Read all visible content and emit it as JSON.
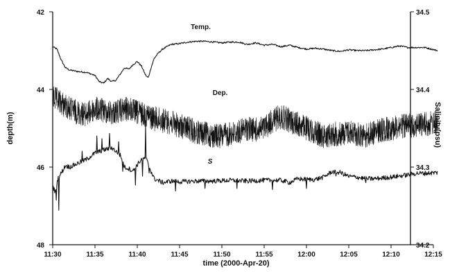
{
  "chart_data": {
    "type": "line",
    "title": "",
    "xlabel": "time (2000-Apr-20)",
    "ylabel_left": "depth(m)",
    "ylabel_right": "Salinity(psu)",
    "x_ticks": [
      "11:30",
      "11:35",
      "11:40",
      "11:45",
      "11:50",
      "11:55",
      "12:00",
      "12:05",
      "12:10",
      "12:15"
    ],
    "xlim_minutes": [
      0,
      45
    ],
    "left_axis": {
      "ticks": [
        "42",
        "44",
        "46",
        "48"
      ],
      "ylim": [
        42,
        48
      ],
      "inverted": true
    },
    "right_axis": {
      "ticks": [
        "34.5",
        "34.4",
        "34.3",
        "34.2"
      ],
      "ylim": [
        34.2,
        34.5
      ]
    },
    "grid": false,
    "x_unit": "minutes after 11:30",
    "series": [
      {
        "name": "Temp.",
        "axis": "right",
        "color": "#111111",
        "noise": 0.001,
        "x": [
          0,
          0.5,
          1,
          1.5,
          2,
          3,
          4,
          5,
          5.5,
          6,
          6.5,
          7,
          7.5,
          8,
          8.5,
          9,
          9.5,
          10,
          10.5,
          11,
          11.3,
          11.6,
          12,
          12.5,
          13,
          14,
          15,
          16,
          17,
          18,
          19,
          20,
          21,
          22,
          23,
          24,
          25,
          26,
          27,
          28,
          29,
          30,
          31,
          32,
          33,
          34,
          35,
          36,
          37,
          38,
          39,
          40,
          41,
          42,
          43,
          44,
          45.5
        ],
        "y": [
          34.455,
          34.452,
          34.438,
          34.428,
          34.425,
          34.423,
          34.422,
          34.418,
          34.41,
          34.408,
          34.414,
          34.41,
          34.412,
          34.42,
          34.428,
          34.426,
          34.432,
          34.436,
          34.43,
          34.418,
          34.415,
          34.427,
          34.44,
          34.447,
          34.452,
          34.458,
          34.459,
          34.461,
          34.462,
          34.462,
          34.461,
          34.46,
          34.461,
          34.461,
          34.458,
          34.46,
          34.457,
          34.458,
          34.455,
          34.457,
          34.454,
          34.452,
          34.453,
          34.452,
          34.45,
          34.449,
          34.451,
          34.45,
          34.45,
          34.451,
          34.452,
          34.454,
          34.456,
          34.454,
          34.454,
          34.454,
          34.45
        ]
      },
      {
        "name": "Dep.",
        "axis": "left",
        "color": "#111111",
        "noise": 0.32,
        "x": [
          0,
          1,
          2,
          3,
          4,
          5,
          6,
          7,
          8,
          9,
          10,
          11,
          12,
          13,
          14,
          15,
          16,
          17,
          18,
          19,
          20,
          21,
          22,
          23,
          24,
          25,
          26,
          27,
          28,
          29,
          30,
          31,
          32,
          33,
          34,
          35,
          36,
          37,
          38,
          39,
          40,
          41,
          42,
          43,
          44,
          45.5
        ],
        "y": [
          44.2,
          44.35,
          44.5,
          44.6,
          44.65,
          44.5,
          44.55,
          44.6,
          44.55,
          44.5,
          44.6,
          44.65,
          44.75,
          44.8,
          44.85,
          44.95,
          45.0,
          45.1,
          45.15,
          45.2,
          45.2,
          45.15,
          45.1,
          45.0,
          45.05,
          45.0,
          44.8,
          44.7,
          44.8,
          44.9,
          45.0,
          45.1,
          45.2,
          45.15,
          45.15,
          45.1,
          45.15,
          45.2,
          45.1,
          45.05,
          45.0,
          44.95,
          44.95,
          44.9,
          44.9,
          44.85
        ]
      },
      {
        "name": "S",
        "axis": "right",
        "color": "#111111",
        "noise": 0.003,
        "spikes": [
          [
            0.4,
            -0.02
          ],
          [
            0.7,
            -0.04
          ],
          [
            3.5,
            0.012
          ],
          [
            5.2,
            0.02
          ],
          [
            5.8,
            0.015
          ],
          [
            6.7,
            0.02
          ],
          [
            7.8,
            0.018
          ],
          [
            8.3,
            -0.012
          ],
          [
            9.8,
            -0.02
          ],
          [
            10.6,
            -0.025
          ],
          [
            11.0,
            0.04
          ],
          [
            11.4,
            -0.008
          ],
          [
            14.5,
            -0.01
          ],
          [
            18.0,
            -0.008
          ],
          [
            21.8,
            -0.01
          ],
          [
            26.0,
            -0.009
          ],
          [
            30.0,
            -0.01
          ],
          [
            33.5,
            -0.008
          ],
          [
            37.0,
            -0.006
          ]
        ],
        "x": [
          0,
          0.3,
          0.6,
          1,
          1.5,
          2,
          3,
          4,
          5,
          6,
          7,
          8,
          8.5,
          9,
          9.5,
          10,
          10.5,
          11,
          11.5,
          12,
          13,
          14,
          15,
          17,
          19,
          21,
          23,
          25,
          27,
          28,
          29,
          30,
          31,
          32,
          33,
          34,
          35,
          36,
          37,
          38,
          40,
          42,
          43,
          44,
          45.5
        ],
        "y": [
          34.275,
          34.268,
          34.285,
          34.292,
          34.302,
          34.3,
          34.305,
          34.31,
          34.318,
          34.322,
          34.325,
          34.315,
          34.3,
          34.298,
          34.295,
          34.303,
          34.31,
          34.312,
          34.298,
          34.285,
          34.28,
          34.282,
          34.281,
          34.282,
          34.282,
          34.283,
          34.282,
          34.283,
          34.283,
          34.28,
          34.285,
          34.284,
          34.284,
          34.287,
          34.294,
          34.293,
          34.288,
          34.287,
          34.285,
          34.285,
          34.287,
          34.29,
          34.292,
          34.292,
          34.293
        ]
      }
    ]
  }
}
